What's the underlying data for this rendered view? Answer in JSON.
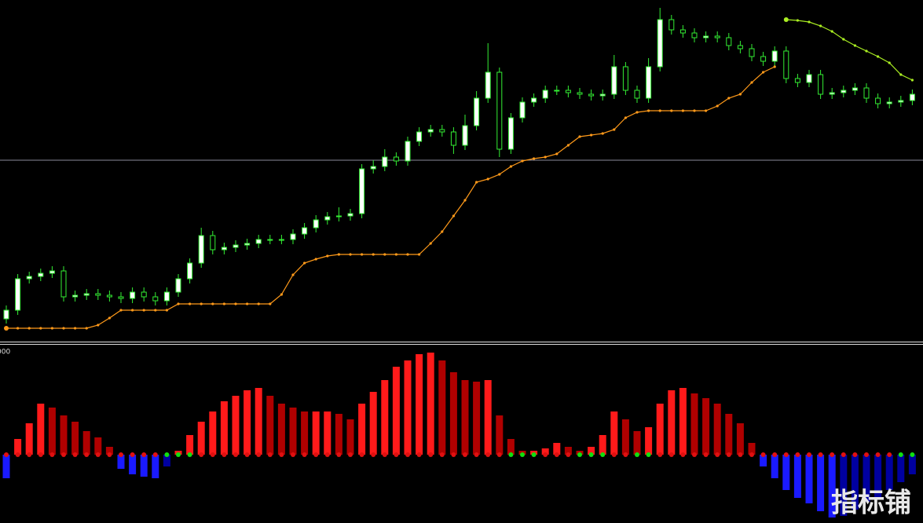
{
  "chart_data": [
    {
      "type": "candlestick",
      "ylim": [
        0,
        436
      ],
      "level": 232,
      "level_color": "#8a8a9a",
      "up_color": "#ffffff",
      "down_color": "#000000",
      "wick_color": "#33ee33",
      "open": [
        30,
        41,
        81,
        84,
        88,
        91,
        58,
        60,
        62,
        60,
        58,
        56,
        64,
        58,
        53,
        64,
        81,
        101,
        136,
        118,
        121,
        124,
        126,
        131,
        131,
        131,
        138,
        146,
        156,
        160,
        161,
        164,
        221,
        224,
        236,
        231,
        256,
        268,
        271,
        268,
        251,
        276,
        311,
        344,
        246,
        286,
        306,
        311,
        321,
        321,
        318,
        316,
        314,
        316,
        351,
        321,
        311,
        351,
        411,
        398,
        394,
        388,
        390,
        388,
        378,
        374,
        364,
        358,
        371,
        336,
        331,
        341,
        316,
        318,
        321,
        324,
        311,
        304,
        306,
        308
      ],
      "high": [
        47,
        87,
        90,
        94,
        97,
        97,
        66,
        68,
        68,
        66,
        64,
        70,
        70,
        64,
        70,
        87,
        107,
        146,
        142,
        127,
        130,
        132,
        137,
        137,
        137,
        144,
        152,
        162,
        166,
        172,
        170,
        227,
        232,
        246,
        242,
        262,
        274,
        277,
        277,
        274,
        290,
        320,
        381,
        350,
        292,
        312,
        317,
        327,
        327,
        327,
        324,
        322,
        322,
        366,
        357,
        327,
        362,
        426,
        417,
        404,
        400,
        396,
        396,
        394,
        384,
        380,
        370,
        377,
        377,
        342,
        347,
        347,
        324,
        327,
        330,
        330,
        317,
        312,
        314,
        322
      ],
      "low": [
        24,
        35,
        75,
        78,
        82,
        52,
        52,
        54,
        54,
        52,
        50,
        50,
        52,
        47,
        47,
        58,
        75,
        95,
        112,
        112,
        115,
        118,
        120,
        125,
        125,
        125,
        132,
        140,
        150,
        154,
        155,
        158,
        215,
        218,
        225,
        225,
        250,
        262,
        262,
        240,
        245,
        270,
        305,
        236,
        240,
        280,
        300,
        305,
        315,
        312,
        310,
        308,
        308,
        310,
        315,
        305,
        305,
        345,
        392,
        388,
        382,
        382,
        382,
        372,
        368,
        358,
        352,
        352,
        330,
        325,
        325,
        310,
        310,
        312,
        315,
        305,
        298,
        298,
        300,
        302
      ],
      "close": [
        41,
        81,
        84,
        88,
        91,
        58,
        60,
        62,
        60,
        58,
        56,
        64,
        58,
        53,
        64,
        81,
        101,
        136,
        118,
        121,
        124,
        126,
        131,
        131,
        131,
        138,
        146,
        156,
        160,
        161,
        164,
        221,
        224,
        236,
        231,
        256,
        268,
        271,
        268,
        251,
        276,
        311,
        344,
        246,
        286,
        306,
        311,
        321,
        321,
        318,
        316,
        314,
        316,
        351,
        321,
        311,
        351,
        411,
        398,
        394,
        388,
        390,
        388,
        378,
        374,
        364,
        358,
        371,
        336,
        331,
        341,
        316,
        318,
        321,
        324,
        311,
        304,
        306,
        308,
        316
      ],
      "series": [
        {
          "color": "#ff9a1a",
          "values": [
            18,
            18,
            18,
            18,
            18,
            18,
            18,
            18,
            22,
            31,
            41,
            41,
            41,
            41,
            41,
            49,
            49,
            49,
            49,
            49,
            49,
            49,
            49,
            49,
            61,
            86,
            101,
            106,
            110,
            112,
            112,
            112,
            112,
            112,
            112,
            112,
            112,
            126,
            141,
            161,
            181,
            204,
            208,
            214,
            224,
            231,
            234,
            236,
            240,
            251,
            262,
            264,
            266,
            271,
            286,
            293,
            295,
            295,
            295,
            295,
            295,
            295,
            301,
            311,
            316,
            331,
            344,
            351,
            null,
            null,
            null,
            null,
            null,
            null,
            null,
            null,
            null,
            null,
            null,
            null
          ]
        },
        {
          "color": "#aaee22",
          "values": [
            null,
            null,
            null,
            null,
            null,
            null,
            null,
            null,
            null,
            null,
            null,
            null,
            null,
            null,
            null,
            null,
            null,
            null,
            null,
            null,
            null,
            null,
            null,
            null,
            null,
            null,
            null,
            null,
            null,
            null,
            null,
            null,
            null,
            null,
            null,
            null,
            null,
            null,
            null,
            null,
            null,
            null,
            null,
            null,
            null,
            null,
            null,
            null,
            null,
            null,
            null,
            null,
            null,
            null,
            null,
            null,
            null,
            null,
            null,
            null,
            null,
            null,
            null,
            null,
            null,
            null,
            null,
            null,
            411,
            410,
            408,
            403,
            396,
            386,
            378,
            371,
            364,
            356,
            341,
            334
          ]
        }
      ]
    },
    {
      "type": "histogram",
      "axis_label": "000",
      "ylim": [
        -87,
        139
      ],
      "up_color": "#ff1a1a",
      "down_color": "#b00000",
      "neg_down_color": "#1a1aff",
      "neg_up_color": "#0000a0",
      "values": [
        -30,
        20,
        40,
        65,
        60,
        50,
        42,
        30,
        22,
        10,
        -18,
        -25,
        -28,
        -30,
        -15,
        5,
        25,
        42,
        55,
        68,
        75,
        82,
        85,
        75,
        65,
        60,
        55,
        55,
        55,
        52,
        45,
        65,
        80,
        95,
        112,
        120,
        128,
        130,
        120,
        105,
        95,
        93,
        95,
        50,
        20,
        5,
        5,
        8,
        15,
        10,
        5,
        10,
        25,
        55,
        45,
        30,
        35,
        65,
        82,
        85,
        78,
        72,
        65,
        52,
        40,
        15,
        -15,
        -30,
        -45,
        -55,
        -62,
        -72,
        -80,
        -78,
        -70,
        -60,
        -55,
        -45,
        -35,
        -25
      ],
      "dot_colors": [
        "#e01010",
        "#e01010",
        "#e01010",
        "#e01010",
        "#e01010",
        "#e01010",
        "#e01010",
        "#e01010",
        "#e01010",
        "#e01010",
        "#e01010",
        "#e01010",
        "#e01010",
        "#e01010",
        "#10e010",
        "#10e010",
        "#10e010",
        "#e01010",
        "#e01010",
        "#e01010",
        "#e01010",
        "#e01010",
        "#e01010",
        "#e01010",
        "#e01010",
        "#e01010",
        "#e01010",
        "#e01010",
        "#e01010",
        "#e01010",
        "#e01010",
        "#e01010",
        "#e01010",
        "#e01010",
        "#e01010",
        "#e01010",
        "#e01010",
        "#e01010",
        "#e01010",
        "#e01010",
        "#e01010",
        "#e01010",
        "#e01010",
        "#e01010",
        "#10e010",
        "#10e010",
        "#10e010",
        "#e01010",
        "#e01010",
        "#e01010",
        "#10e010",
        "#10e010",
        "#10e010",
        "#e01010",
        "#e01010",
        "#10e010",
        "#10e010",
        "#e01010",
        "#e01010",
        "#e01010",
        "#e01010",
        "#e01010",
        "#e01010",
        "#e01010",
        "#e01010",
        "#e01010",
        "#e01010",
        "#e01010",
        "#e01010",
        "#e01010",
        "#e01010",
        "#e01010",
        "#e01010",
        "#e01010",
        "#e01010",
        "#e01010",
        "#e01010",
        "#e01010",
        "#10e010",
        "#10e010"
      ]
    }
  ],
  "watermark": "指标铺"
}
